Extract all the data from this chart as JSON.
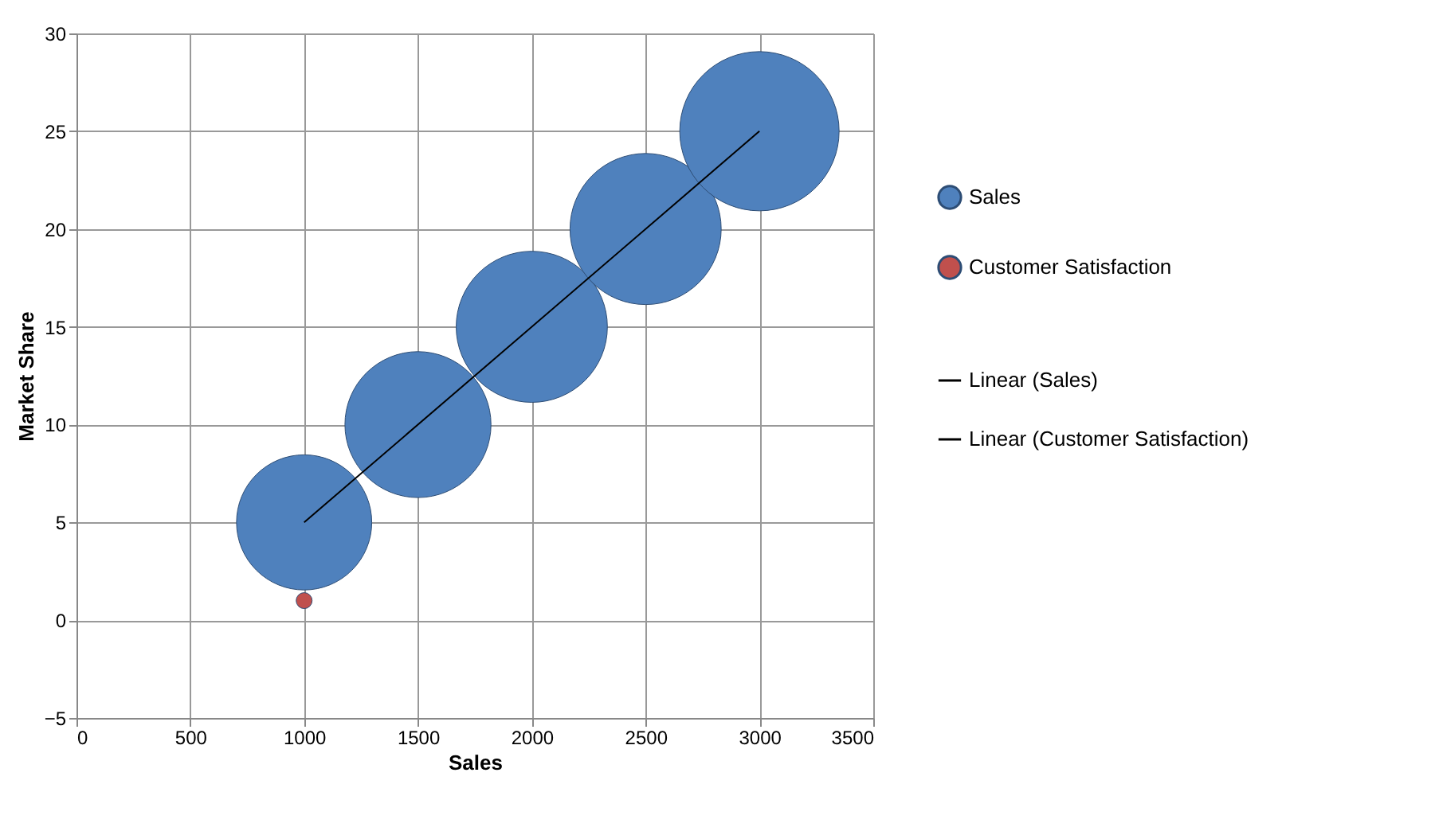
{
  "chart_data": {
    "type": "bubble",
    "xlabel": "Sales",
    "ylabel": "Market Share",
    "xlim": [
      0,
      3500
    ],
    "xticks": [
      0,
      500,
      1000,
      1500,
      2000,
      2500,
      3000,
      3500
    ],
    "ylim": [
      -5,
      30
    ],
    "yticks": [
      -5,
      0,
      5,
      10,
      15,
      20,
      25,
      30
    ],
    "grid": true,
    "legend": "right",
    "series": [
      {
        "name": "Sales",
        "color": "#4f81bd",
        "x": [
          1000,
          1500,
          2000,
          2500,
          3000
        ],
        "values": [
          5,
          10,
          15,
          20,
          25
        ],
        "sizes": [
          0.72,
          0.84,
          0.9,
          0.9,
          1
        ]
      },
      {
        "name": "Customer Satisfaction",
        "color": "#c0504d",
        "x": [
          1000
        ],
        "values": [
          1
        ],
        "sizes": [
          0.01
        ]
      },
      {
        "name": "Linear (Sales)",
        "type": "line",
        "color": "#000000",
        "x": [
          1000,
          3000
        ],
        "values": [
          5,
          25
        ]
      },
      {
        "name": "Linear (Customer Satisfaction)",
        "type": "line",
        "color": "#000000"
      }
    ]
  }
}
